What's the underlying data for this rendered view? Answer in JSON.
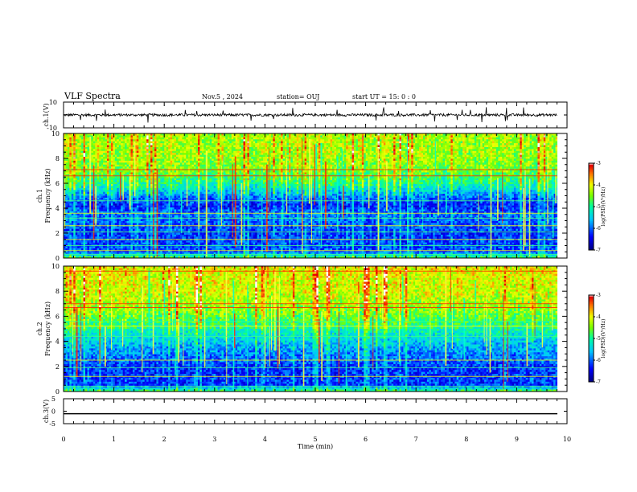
{
  "header": {
    "title": "VLF Spectra",
    "date": "Nov.5 , 2024",
    "station": "station= OUJ",
    "start": "start UT = 15: 0 : 0"
  },
  "chart_data": [
    {
      "type": "line",
      "panel": "ch1-waveform",
      "ylabel": "ch.1(V)",
      "ylim": [
        -10,
        10
      ],
      "y_tick_labels": [
        "10",
        "-10"
      ],
      "xlim": [
        0,
        10
      ],
      "description_values": {
        "baseline_v": 0,
        "noise_amplitude_v": 1,
        "spike_amplitude_v": 6
      }
    },
    {
      "type": "heatmap",
      "panel": "ch1-spectrogram",
      "ylabel": "ch.1\nFrequency (kHz)",
      "ylabel_line1": "ch.1",
      "ylabel_line2": "Frequency (kHz)",
      "ylim": [
        0,
        10
      ],
      "y_ticks": [
        "0",
        "2",
        "4",
        "6",
        "8",
        "10"
      ],
      "xlim": [
        0,
        9.8
      ],
      "colorbar": {
        "label": "log(PSD)(V²/Hz)",
        "min": -7,
        "max": -3,
        "ticks": [
          "-3",
          "-4",
          "-5",
          "-6",
          "-7"
        ]
      },
      "profile_by_frequency_khz": [
        [
          0,
          -4.8
        ],
        [
          0.5,
          -6.2
        ],
        [
          2,
          -6.3
        ],
        [
          3.5,
          -6.0
        ],
        [
          4.2,
          -6.4
        ],
        [
          5,
          -6.0
        ],
        [
          5.8,
          -5.3
        ],
        [
          7,
          -4.7
        ],
        [
          8.5,
          -4.5
        ],
        [
          10,
          -4.5
        ]
      ],
      "horizontal_lines_khz": [
        0.3,
        0.6,
        1.0,
        1.5,
        2.1,
        2.6,
        3.2,
        3.6,
        4.6,
        6.6,
        7.1
      ]
    },
    {
      "type": "heatmap",
      "panel": "ch2-spectrogram",
      "ylabel": "ch.2\nFrequency (kHz)",
      "ylabel_line1": "ch.2",
      "ylabel_line2": "Frequency (kHz)",
      "ylim": [
        0,
        10
      ],
      "y_ticks": [
        "0",
        "2",
        "4",
        "6",
        "8",
        "10"
      ],
      "xlim": [
        0,
        9.8
      ],
      "colorbar": {
        "label": "log(PSD)(V²/Hz)",
        "min": -7,
        "max": -3,
        "ticks": [
          "-3",
          "-4",
          "-5",
          "-6",
          "-7"
        ]
      },
      "profile_by_frequency_khz": [
        [
          0,
          -4.8
        ],
        [
          0.5,
          -6.3
        ],
        [
          2,
          -6.3
        ],
        [
          3.5,
          -5.8
        ],
        [
          5,
          -5.2
        ],
        [
          6.5,
          -4.6
        ],
        [
          8,
          -4.3
        ],
        [
          10,
          -4.2
        ]
      ],
      "horizontal_lines_khz": [
        0.4,
        1.2,
        1.9,
        2.5,
        4.4,
        5.2,
        5.6,
        6.7,
        7.0,
        9.6
      ]
    },
    {
      "type": "line",
      "panel": "ch3-waveform",
      "ylabel": "ch.3(V)",
      "ylim": [
        -5,
        5
      ],
      "y_tick_labels": [
        "5",
        "0",
        "-5"
      ],
      "xlim": [
        0,
        10
      ],
      "description_values": {
        "constant_v": -1
      }
    }
  ],
  "x_axis": {
    "label": "Time (min)",
    "min": 0,
    "max": 10,
    "ticks": [
      "0",
      "1",
      "2",
      "3",
      "4",
      "5",
      "6",
      "7",
      "8",
      "9",
      "10"
    ]
  },
  "colors": {
    "colormap": [
      "#000080",
      "#0000ff",
      "#00ffff",
      "#00ff00",
      "#ffff00",
      "#ff0000",
      "#ffffff"
    ],
    "waveform": "#000000"
  }
}
